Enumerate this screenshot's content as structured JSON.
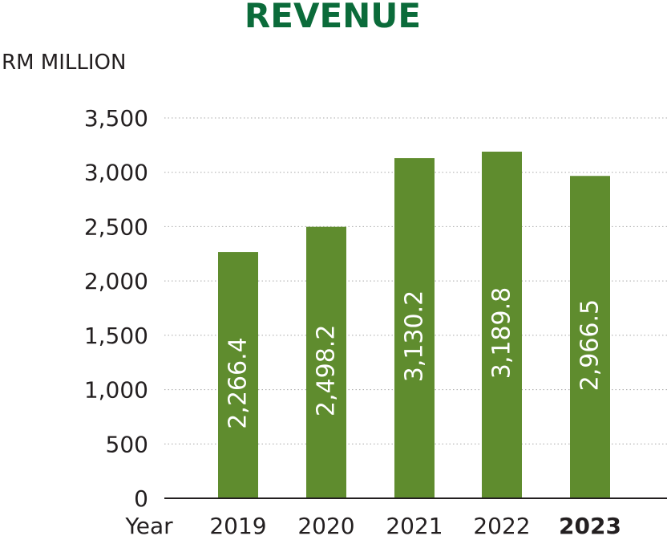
{
  "chart_data": {
    "type": "bar",
    "title": "REVENUE",
    "unit_label": "RM MILLION",
    "xlabel": "Year",
    "categories": [
      "2019",
      "2020",
      "2021",
      "2022",
      "2023"
    ],
    "emphasized_category": "2023",
    "values": [
      2266.4,
      2498.2,
      3130.2,
      3189.8,
      2966.5
    ],
    "value_labels": [
      "2,266.4",
      "2,498.2",
      "3,130.2",
      "3,189.8",
      "2,966.5"
    ],
    "ylim": [
      0,
      3500
    ],
    "yticks": [
      0,
      500,
      1000,
      1500,
      2000,
      2500,
      3000,
      3500
    ],
    "ytick_labels": [
      "0",
      "500",
      "1,000",
      "1,500",
      "2,000",
      "2,500",
      "3,000",
      "3,500"
    ],
    "grid": "horizontal dotted",
    "colors": {
      "title": "#0b6b3a",
      "bar": "#5f8c2e",
      "bar_label": "#ffffff",
      "text": "#231f20",
      "grid": "#a8a8a8",
      "axis": "#231f20"
    }
  }
}
